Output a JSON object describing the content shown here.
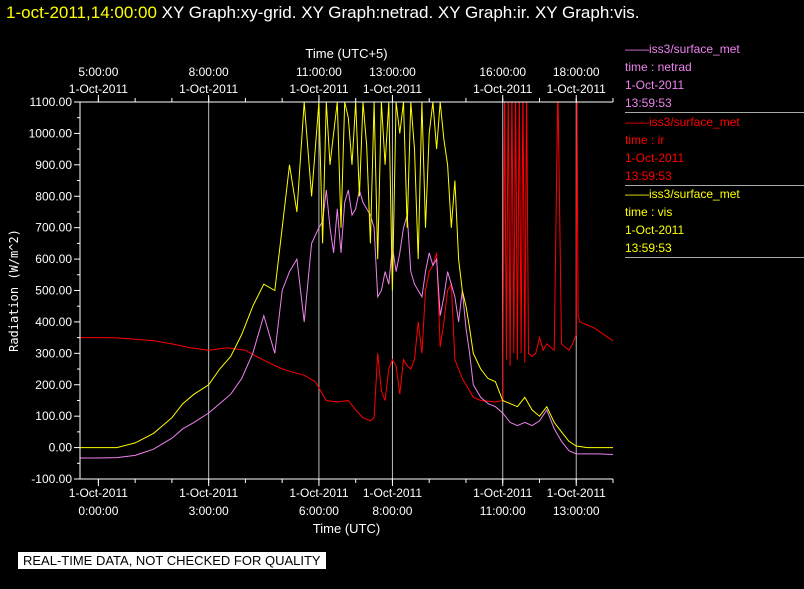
{
  "header": {
    "timestamp": "1-oct-2011,14:00:00",
    "graphs": [
      "XY Graph:xy-grid.",
      "XY Graph:netrad.",
      "XY Graph:ir.",
      "XY Graph:vis."
    ]
  },
  "legend": [
    {
      "line": "iss3/surface_met",
      "var": "time : netrad",
      "date": "1-Oct-2011",
      "time": "13:59:53",
      "color": "#ee82ee"
    },
    {
      "line": "iss3/surface_met",
      "var": "time : ir",
      "date": "1-Oct-2011",
      "time": "13:59:53",
      "color": "#ff0000"
    },
    {
      "line": "iss3/surface_met",
      "var": "time : vis",
      "date": "1-Oct-2011",
      "time": "13:59:53",
      "color": "#ffff00"
    }
  ],
  "footer": {
    "qc_notice": "REAL-TIME DATA, NOT CHECKED FOR QUALITY"
  },
  "chart_data": {
    "type": "line",
    "top_axis_label": "Time (UTC+5)",
    "xlabel": "Time (UTC)",
    "ylabel": "Radiation (W/m^2)",
    "xlim_hours_utc": [
      -0.5,
      14.0
    ],
    "ylim": [
      -100,
      1100
    ],
    "yticks": [
      -100,
      0,
      100,
      200,
      300,
      400,
      500,
      600,
      700,
      800,
      900,
      1000,
      1100
    ],
    "ytick_labels": [
      "-100.00",
      "0.00",
      "100.00",
      "200.00",
      "300.00",
      "400.00",
      "500.00",
      "600.00",
      "700.00",
      "800.00",
      "900.00",
      "1000.00",
      "1100.00"
    ],
    "bottom_ticks": [
      {
        "hour": 0,
        "date": "1-Oct-2011",
        "time": "0:00:00"
      },
      {
        "hour": 3,
        "date": "1-Oct-2011",
        "time": "3:00:00"
      },
      {
        "hour": 6,
        "date": "1-Oct-2011",
        "time": "6:00:00"
      },
      {
        "hour": 8,
        "date": "1-Oct-2011",
        "time": "8:00:00"
      },
      {
        "hour": 11,
        "date": "1-Oct-2011",
        "time": "11:00:00"
      },
      {
        "hour": 13,
        "date": "1-Oct-2011",
        "time": "13:00:00"
      }
    ],
    "top_ticks": [
      {
        "hour": 0,
        "date": "1-Oct-2011",
        "time": "5:00:00"
      },
      {
        "hour": 3,
        "date": "1-Oct-2011",
        "time": "8:00:00"
      },
      {
        "hour": 6,
        "date": "1-Oct-2011",
        "time": "11:00:00"
      },
      {
        "hour": 8,
        "date": "1-Oct-2011",
        "time": "13:00:00"
      },
      {
        "hour": 11,
        "date": "1-Oct-2011",
        "time": "16:00:00"
      },
      {
        "hour": 13,
        "date": "1-Oct-2011",
        "time": "18:00:00"
      }
    ],
    "grid_hours": [
      3,
      6,
      8,
      11,
      13
    ],
    "series": [
      {
        "name": "time : ir",
        "color": "#ff0000",
        "x": [
          -0.5,
          0,
          0.5,
          1,
          1.5,
          2,
          2.5,
          3,
          3.5,
          4,
          4.3,
          4.6,
          5,
          5.3,
          5.6,
          5.9,
          6.2,
          6.5,
          6.8,
          7.0,
          7.2,
          7.3,
          7.4,
          7.5,
          7.6,
          7.7,
          7.8,
          7.9,
          8.0,
          8.1,
          8.2,
          8.3,
          8.4,
          8.5,
          8.6,
          8.7,
          8.8,
          8.9,
          9.0,
          9.1,
          9.2,
          9.3,
          9.4,
          9.5,
          9.6,
          9.7,
          9.8,
          9.9,
          10.0,
          10.1,
          10.2,
          10.4,
          10.6,
          10.8,
          11.0,
          11.05,
          11.1,
          11.15,
          11.2,
          11.25,
          11.3,
          11.35,
          11.4,
          11.45,
          11.5,
          11.55,
          11.6,
          11.65,
          11.7,
          11.8,
          11.9,
          12.0,
          12.1,
          12.2,
          12.3,
          12.4,
          12.5,
          12.6,
          12.7,
          12.8,
          12.9,
          13.0,
          13.02,
          13.05,
          13.1,
          13.5,
          14.0
        ],
        "y": [
          350,
          350,
          349,
          345,
          340,
          330,
          318,
          310,
          318,
          310,
          290,
          272,
          250,
          240,
          230,
          210,
          150,
          145,
          150,
          120,
          95,
          90,
          85,
          95,
          300,
          180,
          150,
          250,
          280,
          260,
          170,
          280,
          260,
          250,
          280,
          400,
          300,
          500,
          560,
          580,
          620,
          320,
          400,
          500,
          520,
          280,
          250,
          220,
          200,
          180,
          160,
          150,
          148,
          145,
          150,
          1150,
          280,
          1150,
          260,
          1150,
          300,
          1150,
          280,
          1150,
          300,
          1150,
          270,
          1150,
          300,
          290,
          300,
          350,
          310,
          330,
          320,
          310,
          1150,
          330,
          320,
          310,
          330,
          360,
          1150,
          420,
          400,
          380,
          340
        ]
      },
      {
        "name": "time : netrad",
        "color": "#ee82ee",
        "x": [
          -0.5,
          0,
          0.5,
          1,
          1.5,
          2,
          2.3,
          2.6,
          3,
          3.3,
          3.6,
          3.9,
          4.2,
          4.5,
          4.8,
          5.0,
          5.2,
          5.4,
          5.6,
          5.8,
          6.0,
          6.1,
          6.2,
          6.3,
          6.4,
          6.5,
          6.6,
          6.7,
          6.8,
          6.9,
          7.0,
          7.1,
          7.2,
          7.3,
          7.4,
          7.5,
          7.6,
          7.7,
          7.8,
          7.9,
          8.0,
          8.1,
          8.2,
          8.3,
          8.4,
          8.5,
          8.6,
          8.7,
          8.8,
          8.9,
          9.0,
          9.1,
          9.2,
          9.3,
          9.4,
          9.5,
          9.6,
          9.7,
          9.8,
          9.9,
          10.0,
          10.1,
          10.2,
          10.4,
          10.6,
          10.8,
          11.0,
          11.2,
          11.4,
          11.6,
          11.8,
          12.0,
          12.2,
          12.4,
          12.6,
          12.8,
          13.0,
          13.3,
          13.6,
          14.0
        ],
        "y": [
          -33,
          -33,
          -32,
          -25,
          -5,
          30,
          60,
          80,
          110,
          140,
          170,
          220,
          300,
          420,
          300,
          500,
          560,
          600,
          400,
          650,
          700,
          720,
          820,
          700,
          620,
          760,
          620,
          780,
          820,
          740,
          760,
          820,
          780,
          760,
          740,
          700,
          480,
          500,
          560,
          520,
          640,
          560,
          620,
          700,
          740,
          560,
          520,
          500,
          480,
          560,
          620,
          580,
          600,
          420,
          480,
          560,
          520,
          480,
          400,
          500,
          380,
          300,
          200,
          160,
          140,
          130,
          110,
          80,
          70,
          80,
          70,
          85,
          120,
          60,
          20,
          -10,
          -20,
          -20,
          -20,
          -22
        ]
      },
      {
        "name": "time : vis",
        "color": "#ffff00",
        "x": [
          -0.5,
          0,
          0.5,
          1,
          1.5,
          2,
          2.3,
          2.6,
          3,
          3.3,
          3.6,
          3.9,
          4.2,
          4.5,
          4.8,
          5.0,
          5.2,
          5.4,
          5.6,
          5.8,
          6.0,
          6.1,
          6.2,
          6.3,
          6.4,
          6.5,
          6.6,
          6.7,
          6.8,
          6.9,
          7.0,
          7.1,
          7.2,
          7.3,
          7.4,
          7.5,
          7.6,
          7.7,
          7.8,
          7.9,
          8.0,
          8.1,
          8.2,
          8.3,
          8.4,
          8.5,
          8.6,
          8.7,
          8.8,
          8.9,
          9.0,
          9.1,
          9.2,
          9.3,
          9.4,
          9.5,
          9.6,
          9.7,
          9.8,
          9.9,
          10.0,
          10.1,
          10.2,
          10.4,
          10.6,
          10.8,
          11.0,
          11.2,
          11.4,
          11.6,
          11.8,
          12.0,
          12.2,
          12.4,
          12.6,
          12.8,
          13.0,
          13.3,
          13.6,
          14.0
        ],
        "y": [
          0,
          0,
          0,
          15,
          45,
          95,
          140,
          170,
          200,
          250,
          290,
          360,
          450,
          520,
          500,
          700,
          900,
          750,
          1100,
          800,
          1100,
          650,
          1100,
          900,
          1000,
          1100,
          700,
          1100,
          1050,
          900,
          1100,
          800,
          1100,
          960,
          650,
          1100,
          600,
          1100,
          900,
          1100,
          500,
          1100,
          1000,
          1100,
          700,
          1100,
          950,
          600,
          1100,
          700,
          1000,
          1100,
          950,
          1100,
          980,
          900,
          700,
          850,
          600,
          500,
          450,
          380,
          300,
          250,
          220,
          210,
          150,
          140,
          130,
          160,
          120,
          100,
          130,
          80,
          50,
          20,
          5,
          0,
          0,
          0
        ]
      }
    ]
  }
}
